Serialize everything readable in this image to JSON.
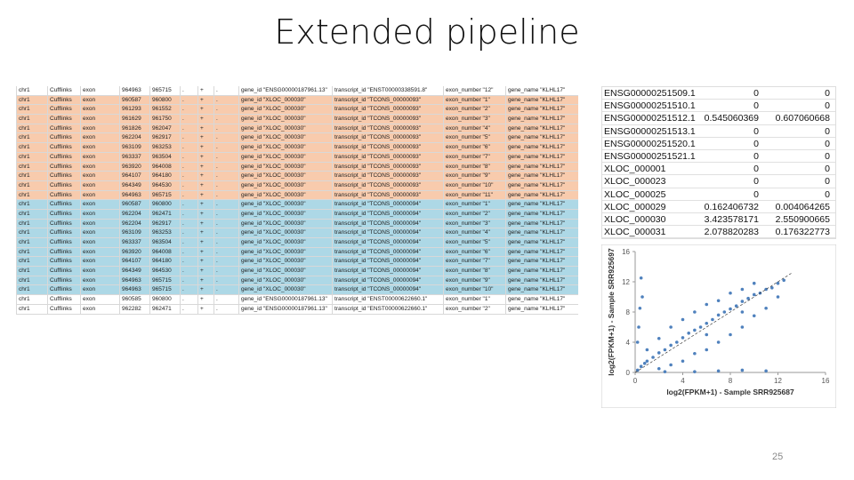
{
  "header": {
    "title": "Extended pipeline"
  },
  "gtf_table": {
    "rows": [
      {
        "fill": "#ffffff",
        "cells": [
          "chr1",
          "Cufflinks",
          "exon",
          "964963",
          "965715",
          ".",
          "+",
          ".",
          "gene_id \"ENSG00000187961.13\"",
          "transcript_id \"ENST00000338591.8\"",
          "exon_number \"12\"",
          "gene_name \"KLHL17\""
        ]
      },
      {
        "fill": "#f8cbad",
        "cells": [
          "chr1",
          "Cufflinks",
          "exon",
          "960587",
          "960800",
          ".",
          "+",
          ".",
          "gene_id \"XLOC_000030\"",
          "transcript_id \"TCONS_00000093\"",
          "exon_number \"1\"",
          "gene_name \"KLHL17\""
        ]
      },
      {
        "fill": "#f8cbad",
        "cells": [
          "chr1",
          "Cufflinks",
          "exon",
          "961293",
          "961552",
          ".",
          "+",
          ".",
          "gene_id \"XLOC_000030\"",
          "transcript_id \"TCONS_00000093\"",
          "exon_number \"2\"",
          "gene_name \"KLHL17\""
        ]
      },
      {
        "fill": "#f8cbad",
        "cells": [
          "chr1",
          "Cufflinks",
          "exon",
          "961629",
          "961750",
          ".",
          "+",
          ".",
          "gene_id \"XLOC_000030\"",
          "transcript_id \"TCONS_00000093\"",
          "exon_number \"3\"",
          "gene_name \"KLHL17\""
        ]
      },
      {
        "fill": "#f8cbad",
        "cells": [
          "chr1",
          "Cufflinks",
          "exon",
          "961826",
          "962047",
          ".",
          "+",
          ".",
          "gene_id \"XLOC_000030\"",
          "transcript_id \"TCONS_00000093\"",
          "exon_number \"4\"",
          "gene_name \"KLHL17\""
        ]
      },
      {
        "fill": "#f8cbad",
        "cells": [
          "chr1",
          "Cufflinks",
          "exon",
          "962204",
          "962917",
          ".",
          "+",
          ".",
          "gene_id \"XLOC_000030\"",
          "transcript_id \"TCONS_00000093\"",
          "exon_number \"5\"",
          "gene_name \"KLHL17\""
        ]
      },
      {
        "fill": "#f8cbad",
        "cells": [
          "chr1",
          "Cufflinks",
          "exon",
          "963109",
          "963253",
          ".",
          "+",
          ".",
          "gene_id \"XLOC_000030\"",
          "transcript_id \"TCONS_00000093\"",
          "exon_number \"6\"",
          "gene_name \"KLHL17\""
        ]
      },
      {
        "fill": "#f8cbad",
        "cells": [
          "chr1",
          "Cufflinks",
          "exon",
          "963337",
          "963504",
          ".",
          "+",
          ".",
          "gene_id \"XLOC_000030\"",
          "transcript_id \"TCONS_00000093\"",
          "exon_number \"7\"",
          "gene_name \"KLHL17\""
        ]
      },
      {
        "fill": "#f8cbad",
        "cells": [
          "chr1",
          "Cufflinks",
          "exon",
          "963920",
          "964008",
          ".",
          "+",
          ".",
          "gene_id \"XLOC_000030\"",
          "transcript_id \"TCONS_00000093\"",
          "exon_number \"8\"",
          "gene_name \"KLHL17\""
        ]
      },
      {
        "fill": "#f8cbad",
        "cells": [
          "chr1",
          "Cufflinks",
          "exon",
          "964107",
          "964180",
          ".",
          "+",
          ".",
          "gene_id \"XLOC_000030\"",
          "transcript_id \"TCONS_00000093\"",
          "exon_number \"9\"",
          "gene_name \"KLHL17\""
        ]
      },
      {
        "fill": "#f8cbad",
        "cells": [
          "chr1",
          "Cufflinks",
          "exon",
          "964349",
          "964530",
          ".",
          "+",
          ".",
          "gene_id \"XLOC_000030\"",
          "transcript_id \"TCONS_00000093\"",
          "exon_number \"10\"",
          "gene_name \"KLHL17\""
        ]
      },
      {
        "fill": "#f8cbad",
        "cells": [
          "chr1",
          "Cufflinks",
          "exon",
          "964963",
          "965715",
          ".",
          "+",
          ".",
          "gene_id \"XLOC_000030\"",
          "transcript_id \"TCONS_00000093\"",
          "exon_number \"11\"",
          "gene_name \"KLHL17\""
        ]
      },
      {
        "fill": "#add8e6",
        "cells": [
          "chr1",
          "Cufflinks",
          "exon",
          "960587",
          "960800",
          ".",
          "+",
          ".",
          "gene_id \"XLOC_000030\"",
          "transcript_id \"TCONS_00000094\"",
          "exon_number \"1\"",
          "gene_name \"KLHL17\""
        ]
      },
      {
        "fill": "#add8e6",
        "cells": [
          "chr1",
          "Cufflinks",
          "exon",
          "962204",
          "962471",
          ".",
          "+",
          ".",
          "gene_id \"XLOC_000030\"",
          "transcript_id \"TCONS_00000094\"",
          "exon_number \"2\"",
          "gene_name \"KLHL17\""
        ]
      },
      {
        "fill": "#add8e6",
        "cells": [
          "chr1",
          "Cufflinks",
          "exon",
          "962204",
          "962917",
          ".",
          "+",
          ".",
          "gene_id \"XLOC_000030\"",
          "transcript_id \"TCONS_00000094\"",
          "exon_number \"3\"",
          "gene_name \"KLHL17\""
        ]
      },
      {
        "fill": "#add8e6",
        "cells": [
          "chr1",
          "Cufflinks",
          "exon",
          "963109",
          "963253",
          ".",
          "+",
          ".",
          "gene_id \"XLOC_000030\"",
          "transcript_id \"TCONS_00000094\"",
          "exon_number \"4\"",
          "gene_name \"KLHL17\""
        ]
      },
      {
        "fill": "#add8e6",
        "cells": [
          "chr1",
          "Cufflinks",
          "exon",
          "963337",
          "963504",
          ".",
          "+",
          ".",
          "gene_id \"XLOC_000030\"",
          "transcript_id \"TCONS_00000094\"",
          "exon_number \"5\"",
          "gene_name \"KLHL17\""
        ]
      },
      {
        "fill": "#add8e6",
        "cells": [
          "chr1",
          "Cufflinks",
          "exon",
          "963920",
          "964008",
          ".",
          "+",
          ".",
          "gene_id \"XLOC_000030\"",
          "transcript_id \"TCONS_00000094\"",
          "exon_number \"6\"",
          "gene_name \"KLHL17\""
        ]
      },
      {
        "fill": "#add8e6",
        "cells": [
          "chr1",
          "Cufflinks",
          "exon",
          "964107",
          "964180",
          ".",
          "+",
          ".",
          "gene_id \"XLOC_000030\"",
          "transcript_id \"TCONS_00000094\"",
          "exon_number \"7\"",
          "gene_name \"KLHL17\""
        ]
      },
      {
        "fill": "#add8e6",
        "cells": [
          "chr1",
          "Cufflinks",
          "exon",
          "964349",
          "964530",
          ".",
          "+",
          ".",
          "gene_id \"XLOC_000030\"",
          "transcript_id \"TCONS_00000094\"",
          "exon_number \"8\"",
          "gene_name \"KLHL17\""
        ]
      },
      {
        "fill": "#add8e6",
        "cells": [
          "chr1",
          "Cufflinks",
          "exon",
          "964963",
          "965715",
          ".",
          "+",
          ".",
          "gene_id \"XLOC_000030\"",
          "transcript_id \"TCONS_00000094\"",
          "exon_number \"9\"",
          "gene_name \"KLHL17\""
        ]
      },
      {
        "fill": "#add8e6",
        "cells": [
          "chr1",
          "Cufflinks",
          "exon",
          "964963",
          "965715",
          ".",
          "+",
          ".",
          "gene_id \"XLOC_000030\"",
          "transcript_id \"TCONS_00000094\"",
          "exon_number \"10\"",
          "gene_name \"KLHL17\""
        ]
      },
      {
        "fill": "#ffffff",
        "cells": [
          "chr1",
          "Cufflinks",
          "exon",
          "960585",
          "960800",
          ".",
          "+",
          ".",
          "gene_id \"ENSG00000187961.13\"",
          "transcript_id \"ENST00000622660.1\"",
          "exon_number \"1\"",
          "gene_name \"KLHL17\""
        ]
      },
      {
        "fill": "#ffffff",
        "cells": [
          "chr1",
          "Cufflinks",
          "exon",
          "962282",
          "962471",
          ".",
          "+",
          ".",
          "gene_id \"ENSG00000187961.13\"",
          "transcript_id \"ENST00000622660.1\"",
          "exon_number \"2\"",
          "gene_name \"KLHL17\""
        ]
      }
    ]
  },
  "fpkm_table": {
    "rows": [
      [
        "ENSG00000251509.1",
        0,
        0
      ],
      [
        "ENSG00000251510.1",
        0,
        0
      ],
      [
        "ENSG00000251512.1",
        0.545060369,
        0.607060668
      ],
      [
        "ENSG00000251513.1",
        0,
        0
      ],
      [
        "ENSG00000251520.1",
        0,
        0
      ],
      [
        "ENSG00000251521.1",
        0,
        0
      ],
      [
        "XLOC_000001",
        0,
        0
      ],
      [
        "XLOC_000023",
        0,
        0
      ],
      [
        "XLOC_000025",
        0,
        0
      ],
      [
        "XLOC_000029",
        0.162406732,
        0.004064265
      ],
      [
        "XLOC_000030",
        3.423578171,
        2.550900665
      ],
      [
        "XLOC_000031",
        2.078820283,
        0.176322773
      ]
    ]
  },
  "chart_data": {
    "type": "scatter",
    "xlabel": "log2(FPKM+1) - Sample SRR925687",
    "ylabel": "log2(FPKM+1) - Sample SRR925697",
    "color": "#4f81bd",
    "xlim": [
      0,
      16
    ],
    "ylim": [
      0,
      16
    ],
    "xticks": [
      0,
      4,
      8,
      12,
      16
    ],
    "yticks": [
      0,
      4,
      8,
      12,
      16
    ],
    "x": [
      0.2,
      0.5,
      0.8,
      1,
      1.5,
      2,
      2.5,
      3,
      3.5,
      4,
      4.5,
      5,
      5.5,
      6,
      6.5,
      7,
      7.5,
      8,
      8.5,
      9,
      9.5,
      10,
      10.5,
      11,
      11.5,
      12,
      12.5,
      0.3,
      0.4,
      0.6,
      0.2,
      0.5,
      2,
      3,
      4,
      5,
      6,
      7,
      8,
      9,
      10,
      11,
      3,
      5,
      7,
      9,
      4,
      6,
      8,
      10,
      5,
      7,
      9,
      11,
      2.5,
      1,
      2,
      6,
      9,
      12
    ],
    "y": [
      0.3,
      0.8,
      1.2,
      1.5,
      2,
      2.6,
      3,
      3.6,
      4,
      4.6,
      5.2,
      5.6,
      6,
      6.5,
      7,
      7.6,
      8,
      8.4,
      8.8,
      9.4,
      9.8,
      10.3,
      10.5,
      11,
      11.2,
      11.8,
      12.2,
      6,
      8.5,
      10,
      4,
      12.5,
      0.5,
      1,
      1.5,
      2.5,
      3,
      4,
      5,
      6,
      7.5,
      8.5,
      6,
      8,
      9.5,
      11,
      7,
      9,
      10.5,
      11.8,
      0.1,
      0.2,
      0.3,
      0.2,
      0.1,
      3,
      4.5,
      5,
      8,
      10
    ]
  },
  "footer": {
    "page_number": "25"
  }
}
